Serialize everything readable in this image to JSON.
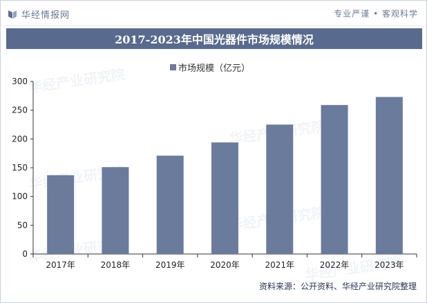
{
  "header": {
    "logo_text": "华经情报网",
    "slogan": "专业严谨 • 客观科学"
  },
  "title": "2017-2023年中国光器件市场规模情况",
  "source": "资料来源：公开资料、华经产业研究院整理",
  "watermark": "华经产业研究院",
  "colors": {
    "bar": "#6b7b9c",
    "title_bg": "#586a8d",
    "logo": "#5b6e93"
  },
  "chart_data": {
    "type": "bar",
    "categories": [
      "2017年",
      "2018年",
      "2019年",
      "2020年",
      "2021年",
      "2022年",
      "2023年"
    ],
    "series": [
      {
        "name": "市场规模（亿元）",
        "values": [
          137,
          151,
          171,
          194,
          225,
          259,
          273
        ]
      }
    ],
    "ylim": [
      0,
      300
    ],
    "yticks": [
      0,
      50,
      100,
      150,
      200,
      250,
      300
    ],
    "legend_position": "top-center",
    "grid": false
  }
}
